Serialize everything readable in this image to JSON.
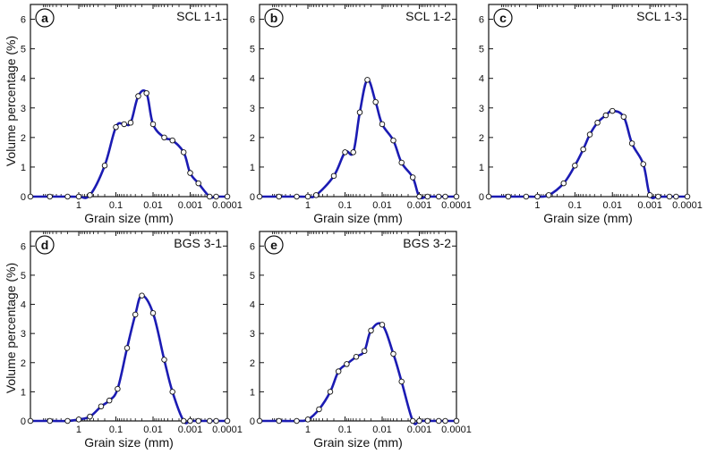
{
  "figure": {
    "xlabel": "Grain size (mm)",
    "ylabel": "Volume percentage (%)"
  },
  "chart_data": [
    {
      "type": "line",
      "letter": "a",
      "title": "SCL 1-1",
      "xlabel": "Grain size (mm)",
      "ylabel": "Volume percentage (%)",
      "x_scale": "log-reversed",
      "xlim": [
        20,
        0.0001
      ],
      "ylim": [
        0,
        6.5
      ],
      "x_ticks": [
        {
          "value": 1,
          "label": "1"
        },
        {
          "value": 0.1,
          "label": "0.1"
        },
        {
          "value": 0.01,
          "label": "0.01"
        },
        {
          "value": 0.001,
          "label": "0.001"
        },
        {
          "value": 0.0001,
          "label": "0.0001"
        }
      ],
      "y_ticks": [
        0,
        1,
        2,
        3,
        4,
        5,
        6
      ],
      "x": [
        20,
        6,
        2,
        1,
        0.5,
        0.2,
        0.1,
        0.06,
        0.04,
        0.025,
        0.015,
        0.01,
        0.005,
        0.003,
        0.0015,
        0.001,
        0.0006,
        0.0003,
        0.0002,
        0.0001
      ],
      "y": [
        0,
        0,
        0,
        0,
        0.05,
        1.05,
        2.35,
        2.45,
        2.5,
        3.4,
        3.5,
        2.45,
        2.0,
        1.9,
        1.5,
        0.8,
        0.45,
        0.0,
        0,
        0
      ],
      "color": "#1b1bb3"
    },
    {
      "type": "line",
      "letter": "b",
      "title": "SCL 1-2",
      "xlabel": "Grain size (mm)",
      "ylabel": "",
      "x_scale": "log-reversed",
      "xlim": [
        20,
        0.0001
      ],
      "ylim": [
        0,
        6.5
      ],
      "x_ticks": [
        {
          "value": 1,
          "label": "1"
        },
        {
          "value": 0.1,
          "label": "0.1"
        },
        {
          "value": 0.01,
          "label": "0.01"
        },
        {
          "value": 0.001,
          "label": "0.001"
        },
        {
          "value": 0.0001,
          "label": "0.0001"
        }
      ],
      "y_ticks": [
        0,
        1,
        2,
        3,
        4,
        5,
        6
      ],
      "x": [
        20,
        6,
        2,
        1,
        0.6,
        0.2,
        0.1,
        0.06,
        0.04,
        0.025,
        0.015,
        0.01,
        0.005,
        0.003,
        0.0015,
        0.001,
        0.0006,
        0.0003,
        0.0002,
        0.0001
      ],
      "y": [
        0,
        0,
        0,
        0,
        0.05,
        0.7,
        1.5,
        1.5,
        2.85,
        3.95,
        3.2,
        2.45,
        1.9,
        1.15,
        0.65,
        0.0,
        0,
        0,
        0,
        0
      ],
      "color": "#1b1bb3"
    },
    {
      "type": "line",
      "letter": "c",
      "title": "SCL 1-3",
      "xlabel": "Grain size (mm)",
      "ylabel": "",
      "x_scale": "log-reversed",
      "xlim": [
        20,
        0.0001
      ],
      "ylim": [
        0,
        6.5
      ],
      "x_ticks": [
        {
          "value": 1,
          "label": "1"
        },
        {
          "value": 0.1,
          "label": "0.1"
        },
        {
          "value": 0.01,
          "label": "0.01"
        },
        {
          "value": 0.001,
          "label": "0.001"
        },
        {
          "value": 0.0001,
          "label": "0.0001"
        }
      ],
      "y_ticks": [
        0,
        1,
        2,
        3,
        4,
        5,
        6
      ],
      "x": [
        20,
        6,
        2,
        1,
        0.5,
        0.2,
        0.1,
        0.06,
        0.04,
        0.025,
        0.015,
        0.01,
        0.005,
        0.003,
        0.0015,
        0.001,
        0.0006,
        0.0003,
        0.0002,
        0.0001
      ],
      "y": [
        0,
        0,
        0,
        0,
        0.05,
        0.45,
        1.05,
        1.6,
        2.1,
        2.5,
        2.75,
        2.9,
        2.7,
        1.8,
        1.1,
        0.05,
        0,
        0,
        0,
        0
      ],
      "color": "#1b1bb3"
    },
    {
      "type": "line",
      "letter": "d",
      "title": "BGS 3-1",
      "xlabel": "Grain size (mm)",
      "ylabel": "Volume percentage (%)",
      "x_scale": "log-reversed",
      "xlim": [
        20,
        0.0001
      ],
      "ylim": [
        0,
        6.5
      ],
      "x_ticks": [
        {
          "value": 1,
          "label": "1"
        },
        {
          "value": 0.1,
          "label": "0.1"
        },
        {
          "value": 0.01,
          "label": "0.01"
        },
        {
          "value": 0.001,
          "label": "0.001"
        },
        {
          "value": 0.0001,
          "label": "0.0001"
        }
      ],
      "y_ticks": [
        0,
        1,
        2,
        3,
        4,
        5,
        6
      ],
      "x": [
        20,
        6,
        2,
        1,
        0.5,
        0.25,
        0.15,
        0.09,
        0.05,
        0.03,
        0.02,
        0.01,
        0.005,
        0.003,
        0.0015,
        0.001,
        0.0006,
        0.0003,
        0.0002,
        0.0001
      ],
      "y": [
        0,
        0,
        0,
        0.05,
        0.15,
        0.5,
        0.7,
        1.1,
        2.5,
        3.65,
        4.3,
        3.7,
        2.1,
        1.0,
        0.0,
        0,
        0,
        0,
        0,
        0
      ],
      "color": "#1b1bb3"
    },
    {
      "type": "line",
      "letter": "e",
      "title": "BGS 3-2",
      "xlabel": "Grain size (mm)",
      "ylabel": "",
      "x_scale": "log-reversed",
      "xlim": [
        20,
        0.0001
      ],
      "ylim": [
        0,
        6.5
      ],
      "x_ticks": [
        {
          "value": 1,
          "label": "1"
        },
        {
          "value": 0.1,
          "label": "0.1"
        },
        {
          "value": 0.01,
          "label": "0.01"
        },
        {
          "value": 0.001,
          "label": "0.001"
        },
        {
          "value": 0.0001,
          "label": "0.0001"
        }
      ],
      "y_ticks": [
        0,
        1,
        2,
        3,
        4,
        5,
        6
      ],
      "x": [
        20,
        6,
        2,
        1,
        0.5,
        0.25,
        0.15,
        0.09,
        0.05,
        0.03,
        0.02,
        0.01,
        0.005,
        0.003,
        0.0015,
        0.001,
        0.0006,
        0.0003,
        0.0002,
        0.0001
      ],
      "y": [
        0,
        0,
        0,
        0.05,
        0.4,
        1.0,
        1.7,
        1.95,
        2.2,
        2.4,
        3.1,
        3.3,
        2.3,
        1.35,
        0.0,
        0,
        0,
        0,
        0,
        0
      ],
      "color": "#1b1bb3"
    }
  ]
}
